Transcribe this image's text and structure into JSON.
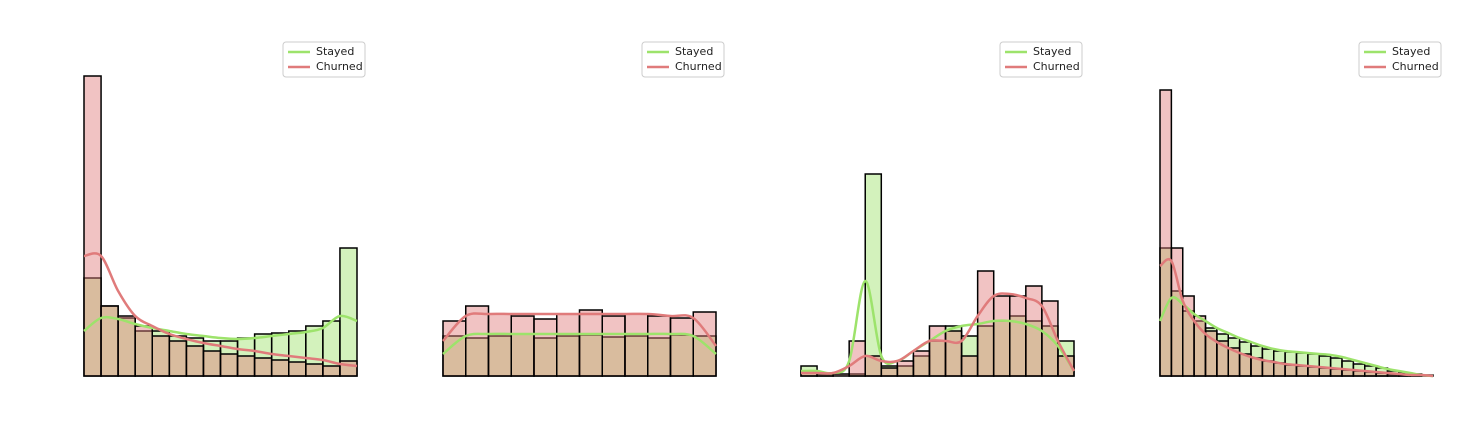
{
  "chart_data": [
    {
      "type": "histogram",
      "legend": "upper right",
      "ylim": [
        0,
        310
      ],
      "edgecolor": "#000000",
      "bins": [
        0,
        1,
        2,
        3,
        4,
        5,
        6,
        7,
        8,
        9,
        10,
        11,
        12,
        13,
        14,
        15,
        16
      ],
      "series": [
        {
          "name": "Stayed",
          "color": "#9de36b",
          "values": [
            98,
            70,
            58,
            45,
            45,
            40,
            38,
            35,
            35,
            38,
            42,
            43,
            45,
            50,
            55,
            128
          ],
          "kde": [
            45,
            58,
            57,
            52,
            48,
            45,
            42,
            40,
            38,
            37,
            38,
            40,
            42,
            44,
            48,
            60,
            55
          ]
        },
        {
          "name": "Churned",
          "color": "#e07b7b",
          "values": [
            300,
            70,
            60,
            50,
            40,
            35,
            30,
            25,
            22,
            20,
            18,
            16,
            14,
            12,
            10,
            15
          ],
          "kde": [
            120,
            120,
            85,
            60,
            50,
            42,
            37,
            33,
            30,
            27,
            25,
            22,
            20,
            18,
            16,
            12,
            10
          ]
        }
      ]
    },
    {
      "type": "histogram",
      "legend": "upper right",
      "ylim": [
        0,
        310
      ],
      "edgecolor": "#000000",
      "bins": [
        0,
        1,
        2,
        3,
        4,
        5,
        6,
        7,
        8,
        9,
        10,
        11,
        12
      ],
      "series": [
        {
          "name": "Stayed",
          "color": "#9de36b",
          "values": [
            40,
            38,
            40,
            42,
            38,
            40,
            41,
            39,
            40,
            38,
            41,
            40
          ],
          "kde": [
            22,
            40,
            42,
            42,
            42,
            42,
            42,
            42,
            42,
            42,
            42,
            40,
            22
          ]
        },
        {
          "name": "Churned",
          "color": "#e07b7b",
          "values": [
            55,
            70,
            62,
            60,
            57,
            62,
            66,
            60,
            62,
            60,
            58,
            64
          ],
          "kde": [
            35,
            60,
            62,
            62,
            62,
            62,
            62,
            62,
            62,
            62,
            60,
            58,
            30
          ]
        }
      ]
    },
    {
      "type": "histogram",
      "legend": "upper right",
      "ylim": [
        0,
        310
      ],
      "edgecolor": "#000000",
      "bins": [
        0,
        1,
        2,
        3,
        4,
        5,
        6,
        7,
        8,
        9,
        10,
        11,
        12,
        13,
        14,
        15,
        16,
        17
      ],
      "series": [
        {
          "name": "Stayed",
          "color": "#9de36b",
          "values": [
            10,
            3,
            0,
            2,
            202,
            10,
            10,
            20,
            35,
            50,
            40,
            50,
            55,
            60,
            55,
            50,
            35
          ],
          "kde": [
            5,
            5,
            3,
            15,
            95,
            20,
            15,
            25,
            35,
            45,
            50,
            52,
            55,
            55,
            52,
            45,
            30,
            5
          ]
        },
        {
          "name": "Churned",
          "color": "#e07b7b",
          "values": [
            5,
            2,
            2,
            35,
            20,
            8,
            15,
            25,
            50,
            45,
            20,
            105,
            80,
            80,
            90,
            75,
            20
          ],
          "kde": [
            3,
            3,
            3,
            10,
            20,
            15,
            15,
            25,
            35,
            35,
            35,
            60,
            80,
            82,
            78,
            70,
            35,
            5
          ]
        }
      ]
    },
    {
      "type": "histogram",
      "legend": "upper right",
      "ylim": [
        0,
        310
      ],
      "edgecolor": "#000000",
      "bins": [
        0,
        1,
        2,
        3,
        4,
        5,
        6,
        7,
        8,
        9,
        10,
        11,
        12,
        13,
        14,
        15,
        16,
        17,
        18,
        19,
        20,
        21,
        22,
        23,
        24
      ],
      "series": [
        {
          "name": "Stayed",
          "color": "#9de36b",
          "values": [
            128,
            85,
            65,
            55,
            48,
            42,
            38,
            34,
            30,
            27,
            25,
            24,
            23,
            22,
            20,
            18,
            15,
            12,
            10,
            8,
            5,
            3,
            2,
            1
          ],
          "kde": [
            55,
            78,
            72,
            62,
            55,
            48,
            43,
            38,
            34,
            30,
            27,
            25,
            24,
            23,
            22,
            21,
            19,
            16,
            13,
            10,
            7,
            5,
            3,
            1,
            0
          ]
        },
        {
          "name": "Churned",
          "color": "#e07b7b",
          "values": [
            286,
            128,
            80,
            60,
            45,
            35,
            28,
            22,
            18,
            15,
            13,
            11,
            10,
            9,
            8,
            7,
            6,
            5,
            4,
            3,
            2,
            1,
            1,
            0
          ],
          "kde": [
            110,
            115,
            75,
            55,
            42,
            34,
            28,
            23,
            19,
            16,
            14,
            12,
            11,
            10,
            9,
            8,
            7,
            6,
            5,
            4,
            3,
            2,
            1,
            1,
            0
          ]
        }
      ]
    }
  ]
}
